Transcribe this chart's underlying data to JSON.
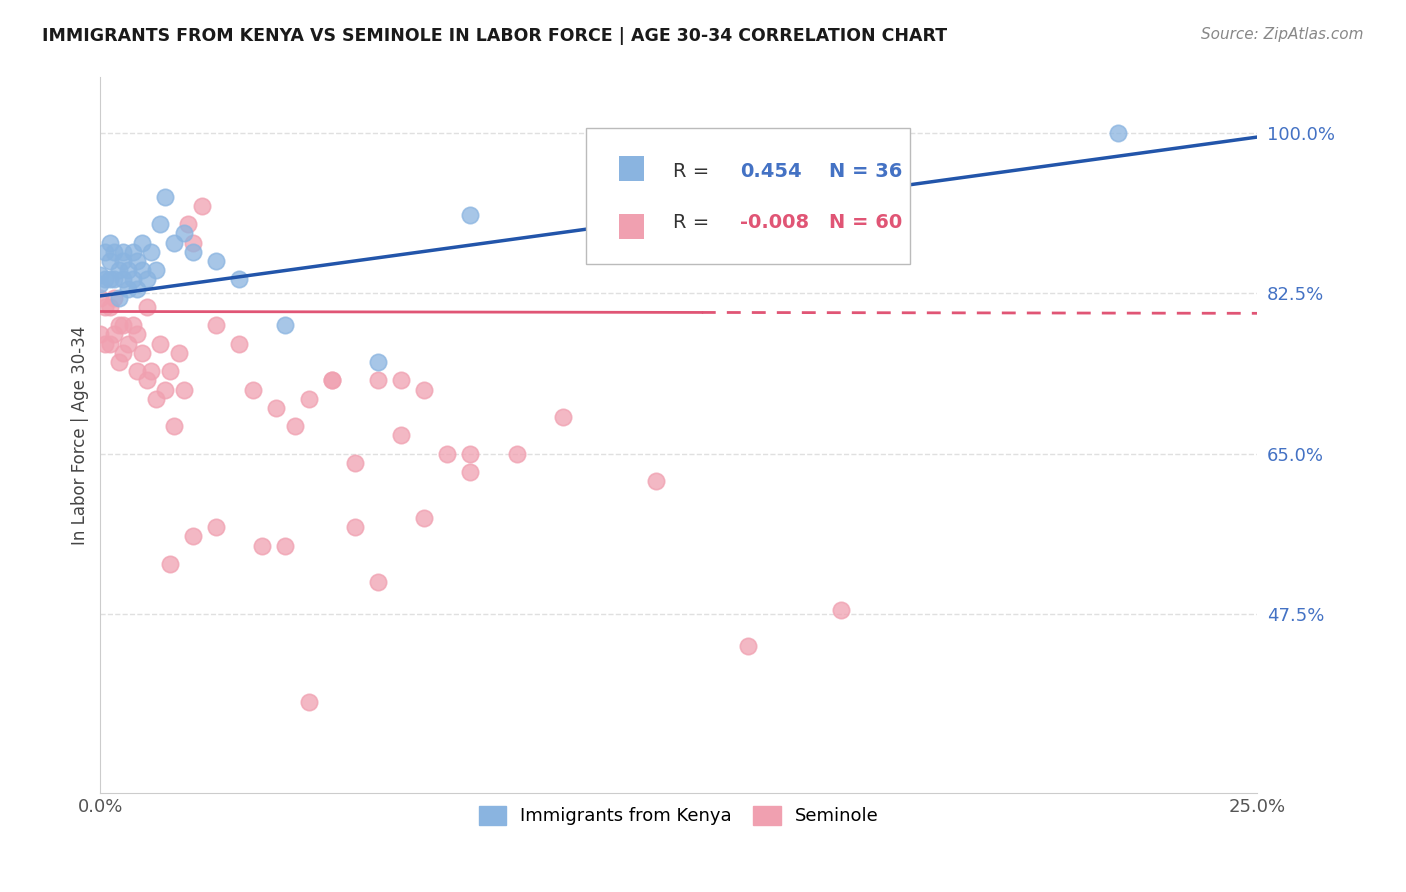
{
  "title": "IMMIGRANTS FROM KENYA VS SEMINOLE IN LABOR FORCE | AGE 30-34 CORRELATION CHART",
  "source": "Source: ZipAtlas.com",
  "ylabel": "In Labor Force | Age 30-34",
  "ytick_labels": [
    "100.0%",
    "82.5%",
    "65.0%",
    "47.5%"
  ],
  "ytick_values": [
    1.0,
    0.825,
    0.65,
    0.475
  ],
  "xlim": [
    0.0,
    0.25
  ],
  "ylim": [
    0.28,
    1.06
  ],
  "color_kenya": "#8ab4e0",
  "color_seminole": "#f0a0b0",
  "trendline_color_kenya": "#2255aa",
  "trendline_color_seminole": "#e05575",
  "kenya_R": 0.454,
  "kenya_N": 36,
  "seminole_R": -0.008,
  "seminole_N": 60,
  "kenya_trend_x": [
    0.0,
    0.25
  ],
  "kenya_trend_y": [
    0.822,
    0.995
  ],
  "seminole_trend_y": [
    0.805,
    0.803
  ],
  "seminole_trend_solid_end": 0.13,
  "kenya_points_x": [
    0.0,
    0.0,
    0.001,
    0.001,
    0.002,
    0.002,
    0.002,
    0.003,
    0.003,
    0.004,
    0.004,
    0.005,
    0.005,
    0.005,
    0.006,
    0.006,
    0.007,
    0.007,
    0.008,
    0.008,
    0.009,
    0.009,
    0.01,
    0.011,
    0.012,
    0.013,
    0.014,
    0.016,
    0.018,
    0.02,
    0.025,
    0.03,
    0.04,
    0.06,
    0.08,
    0.22
  ],
  "kenya_points_y": [
    0.835,
    0.845,
    0.87,
    0.84,
    0.86,
    0.84,
    0.88,
    0.84,
    0.87,
    0.85,
    0.82,
    0.87,
    0.84,
    0.86,
    0.85,
    0.83,
    0.87,
    0.84,
    0.86,
    0.83,
    0.88,
    0.85,
    0.84,
    0.87,
    0.85,
    0.9,
    0.93,
    0.88,
    0.89,
    0.87,
    0.86,
    0.84,
    0.79,
    0.75,
    0.91,
    1.0
  ],
  "seminole_points_x": [
    0.0,
    0.0,
    0.001,
    0.001,
    0.002,
    0.002,
    0.003,
    0.003,
    0.004,
    0.004,
    0.005,
    0.005,
    0.006,
    0.007,
    0.008,
    0.008,
    0.009,
    0.01,
    0.011,
    0.012,
    0.013,
    0.014,
    0.015,
    0.016,
    0.017,
    0.018,
    0.019,
    0.02,
    0.022,
    0.025,
    0.03,
    0.033,
    0.038,
    0.042,
    0.045,
    0.05,
    0.055,
    0.06,
    0.065,
    0.065,
    0.07,
    0.075,
    0.08,
    0.09,
    0.1,
    0.12,
    0.14,
    0.16,
    0.05,
    0.07,
    0.06,
    0.055,
    0.04,
    0.08,
    0.045,
    0.035,
    0.025,
    0.02,
    0.015,
    0.01
  ],
  "seminole_points_y": [
    0.82,
    0.78,
    0.77,
    0.81,
    0.81,
    0.77,
    0.82,
    0.78,
    0.79,
    0.75,
    0.79,
    0.76,
    0.77,
    0.79,
    0.78,
    0.74,
    0.76,
    0.73,
    0.74,
    0.71,
    0.77,
    0.72,
    0.74,
    0.68,
    0.76,
    0.72,
    0.9,
    0.88,
    0.92,
    0.79,
    0.77,
    0.72,
    0.7,
    0.68,
    0.71,
    0.73,
    0.64,
    0.73,
    0.67,
    0.73,
    0.72,
    0.65,
    0.63,
    0.65,
    0.69,
    0.62,
    0.44,
    0.48,
    0.73,
    0.58,
    0.51,
    0.57,
    0.55,
    0.65,
    0.38,
    0.55,
    0.57,
    0.56,
    0.53,
    0.81
  ],
  "background_color": "#ffffff",
  "grid_color": "#e0e0e0"
}
